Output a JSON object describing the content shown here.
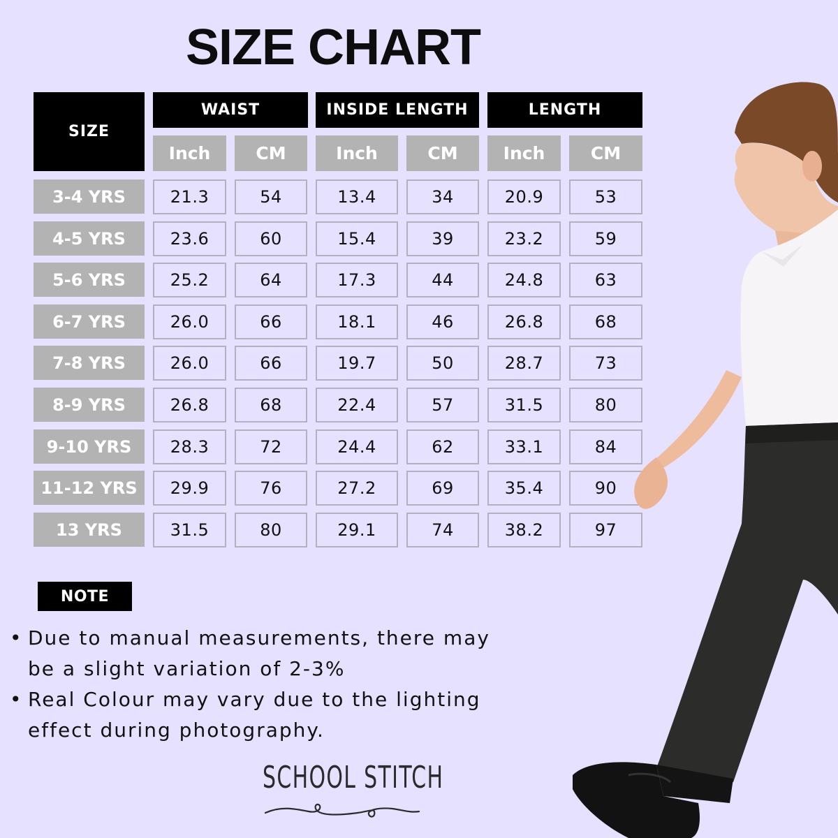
{
  "title": "SIZE CHART",
  "table": {
    "size_header": "SIZE",
    "groups": [
      {
        "label": "WAIST",
        "units": [
          "Inch",
          "CM"
        ]
      },
      {
        "label": "INSIDE LENGTH",
        "units": [
          "Inch",
          "CM"
        ]
      },
      {
        "label": "LENGTH",
        "units": [
          "Inch",
          "CM"
        ]
      }
    ],
    "rows": [
      {
        "size": "3-4 YRS",
        "values": [
          "21.3",
          "54",
          "13.4",
          "34",
          "20.9",
          "53"
        ]
      },
      {
        "size": "4-5 YRS",
        "values": [
          "23.6",
          "60",
          "15.4",
          "39",
          "23.2",
          "59"
        ]
      },
      {
        "size": "5-6 YRS",
        "values": [
          "25.2",
          "64",
          "17.3",
          "44",
          "24.8",
          "63"
        ]
      },
      {
        "size": "6-7 YRS",
        "values": [
          "26.0",
          "66",
          "18.1",
          "46",
          "26.8",
          "68"
        ]
      },
      {
        "size": "7-8 YRS",
        "values": [
          "26.0",
          "66",
          "19.7",
          "50",
          "28.7",
          "73"
        ]
      },
      {
        "size": "8-9 YRS",
        "values": [
          "26.8",
          "68",
          "22.4",
          "57",
          "31.5",
          "80"
        ]
      },
      {
        "size": "9-10 YRS",
        "values": [
          "28.3",
          "72",
          "24.4",
          "62",
          "33.1",
          "84"
        ]
      },
      {
        "size": "11-12 YRS",
        "values": [
          "29.9",
          "76",
          "27.2",
          "69",
          "35.4",
          "90"
        ]
      },
      {
        "size": "13 YRS",
        "values": [
          "31.5",
          "80",
          "29.1",
          "74",
          "38.2",
          "97"
        ]
      }
    ]
  },
  "note": {
    "label": "NOTE",
    "bullet": "•",
    "items": [
      "Due to manual measurements, there may be a slight variation of 2-3%",
      "Real Colour may vary due to the lighting effect during photography."
    ]
  },
  "brand": "SCHOOL STITCH",
  "colors": {
    "background": "#e6e1fe",
    "header_black": "#000000",
    "header_gray": "#b3b3b3",
    "cell_border": "#b4b0c0",
    "text": "#111111"
  },
  "chart_data": {
    "type": "table",
    "title": "SIZE CHART",
    "columns": [
      "SIZE",
      "WAIST Inch",
      "WAIST CM",
      "INSIDE LENGTH Inch",
      "INSIDE LENGTH CM",
      "LENGTH Inch",
      "LENGTH CM"
    ],
    "categories": [
      "3-4 YRS",
      "4-5 YRS",
      "5-6 YRS",
      "6-7 YRS",
      "7-8 YRS",
      "8-9 YRS",
      "9-10 YRS",
      "11-12 YRS",
      "13 YRS"
    ],
    "series": [
      {
        "name": "WAIST Inch",
        "values": [
          21.3,
          23.6,
          25.2,
          26.0,
          26.0,
          26.8,
          28.3,
          29.9,
          31.5
        ]
      },
      {
        "name": "WAIST CM",
        "values": [
          54,
          60,
          64,
          66,
          66,
          68,
          72,
          76,
          80
        ]
      },
      {
        "name": "INSIDE LENGTH Inch",
        "values": [
          13.4,
          15.4,
          17.3,
          18.1,
          19.7,
          22.4,
          24.4,
          27.2,
          29.1
        ]
      },
      {
        "name": "INSIDE LENGTH CM",
        "values": [
          34,
          39,
          44,
          46,
          50,
          57,
          62,
          69,
          74
        ]
      },
      {
        "name": "LENGTH Inch",
        "values": [
          20.9,
          23.2,
          24.8,
          26.8,
          28.7,
          31.5,
          33.1,
          35.4,
          38.2
        ]
      },
      {
        "name": "LENGTH CM",
        "values": [
          53,
          59,
          63,
          68,
          73,
          80,
          84,
          90,
          97
        ]
      }
    ]
  }
}
